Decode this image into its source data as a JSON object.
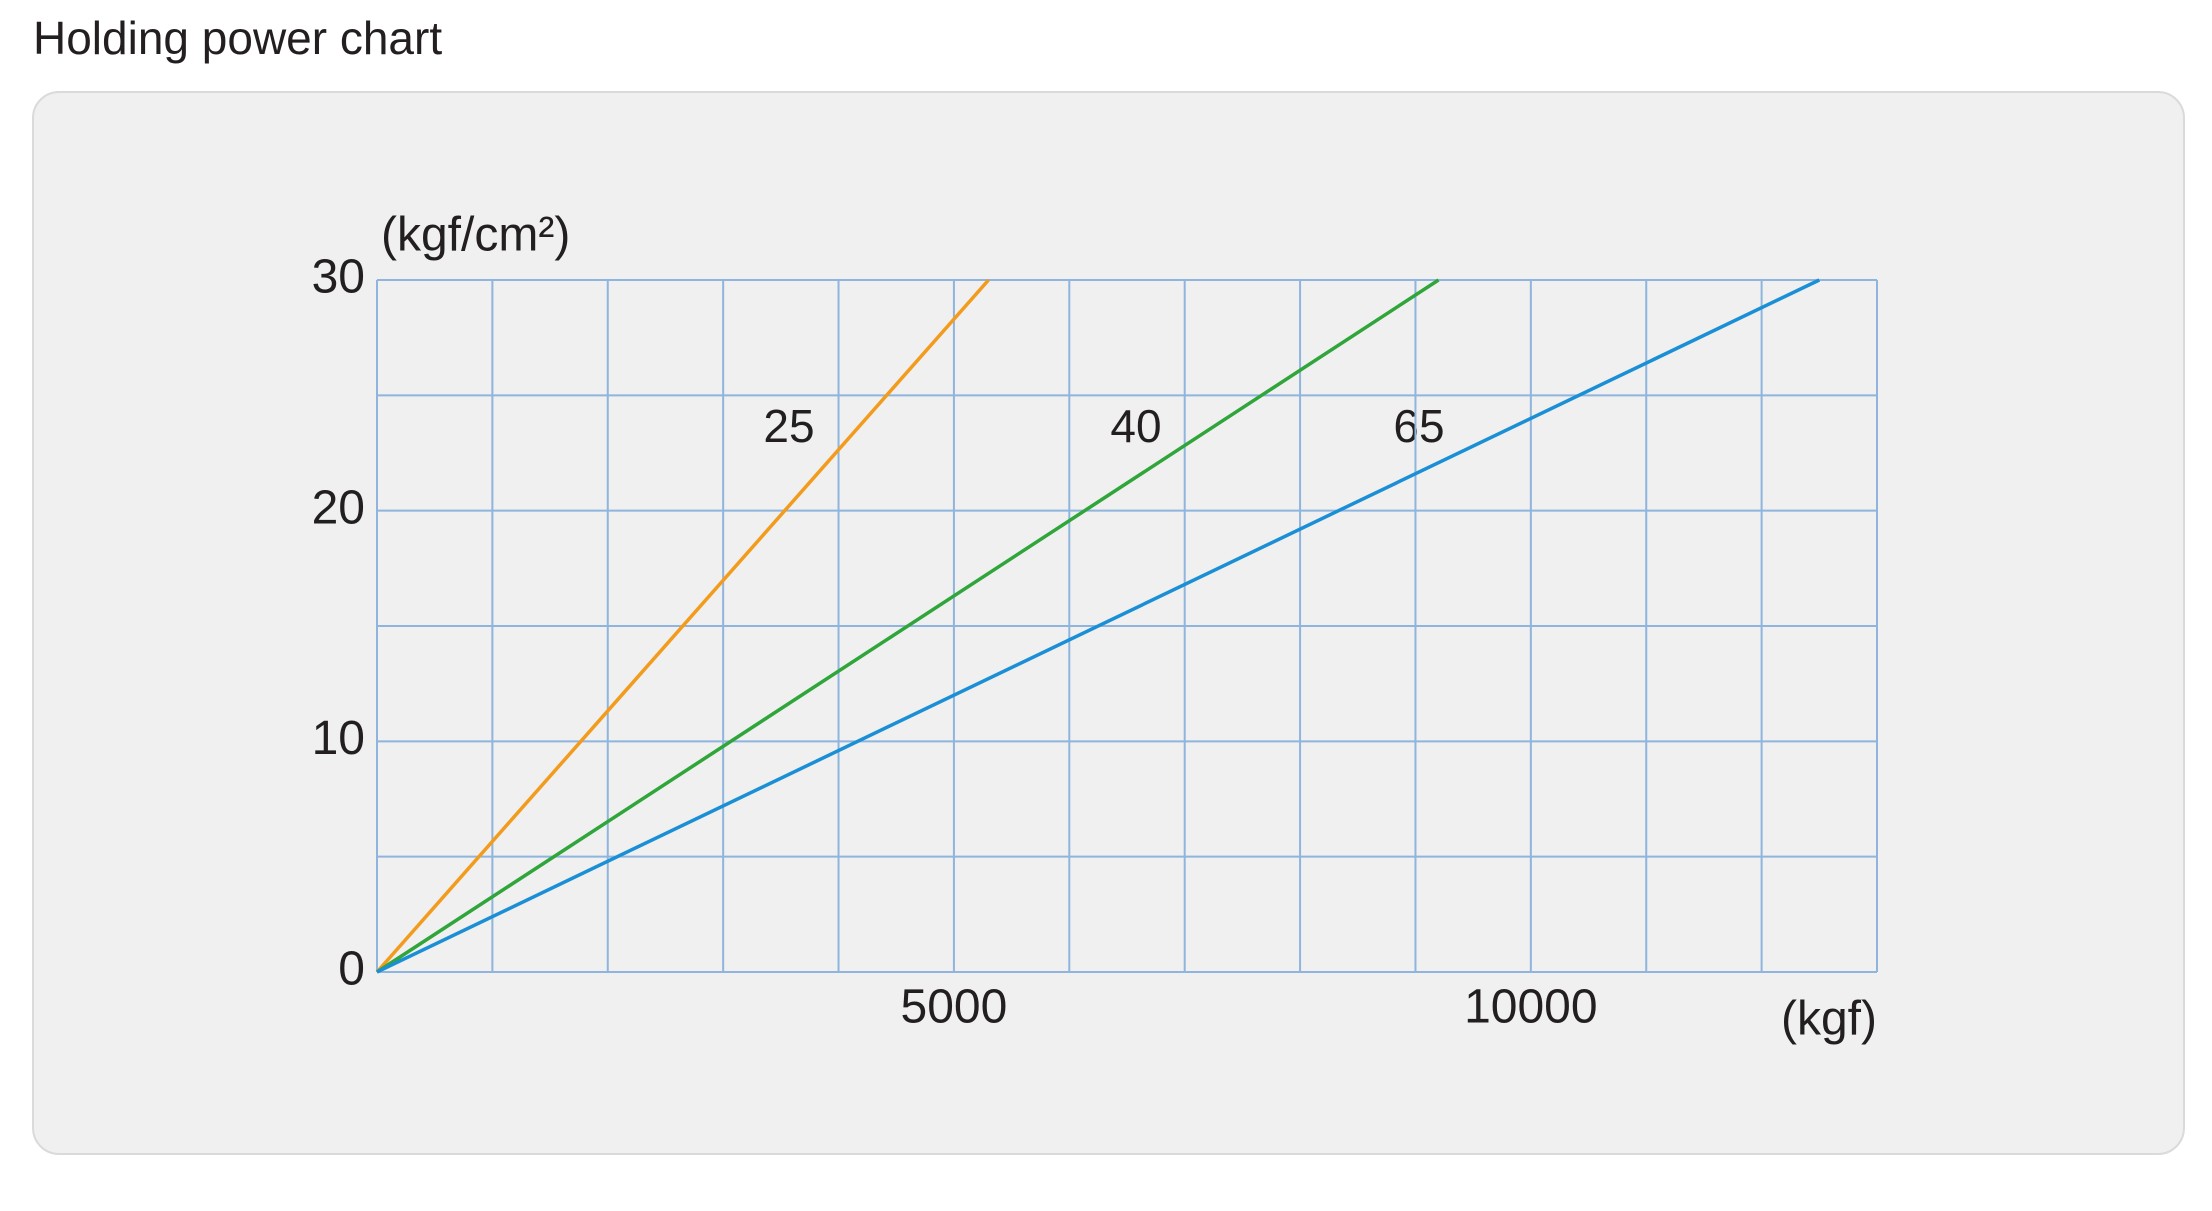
{
  "chart_data": {
    "type": "line",
    "title": "Holding power chart",
    "y_label": "(kgf/cm²)",
    "x_label": "(kgf)",
    "xlim": [
      0,
      13000
    ],
    "ylim": [
      0,
      30
    ],
    "xticks": [
      5000,
      10000
    ],
    "yticks": [
      0,
      10,
      20,
      30
    ],
    "xgrid": [
      0,
      1000,
      2000,
      3000,
      4000,
      5000,
      6000,
      7000,
      8000,
      9000,
      10000,
      11000,
      12000,
      13000
    ],
    "ygrid": [
      0,
      5,
      10,
      15,
      20,
      25,
      30
    ],
    "grid_color": "#8fb4de",
    "series": [
      {
        "name": "25",
        "color": "#f29b1d",
        "x": [
          0,
          5300
        ],
        "values": [
          0,
          30
        ]
      },
      {
        "name": "40",
        "color": "#2fa53a",
        "x": [
          0,
          9200
        ],
        "values": [
          0,
          30
        ]
      },
      {
        "name": "65",
        "color": "#1b8fd6",
        "x": [
          0,
          12500
        ],
        "values": [
          0,
          30
        ]
      }
    ]
  }
}
